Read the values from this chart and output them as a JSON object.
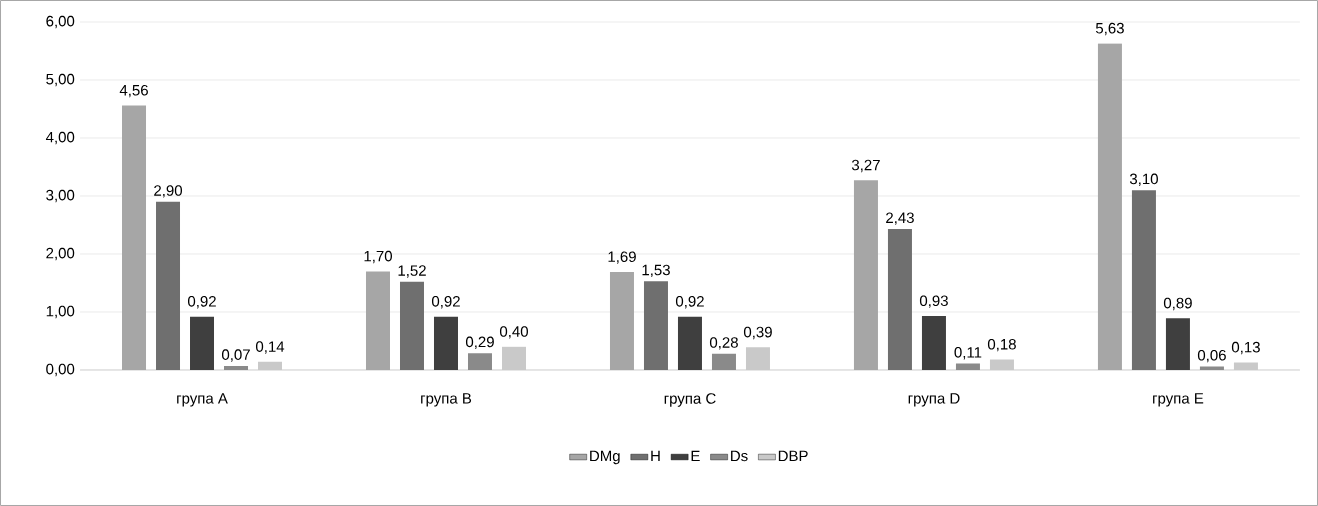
{
  "chart_data": {
    "type": "bar",
    "categories": [
      "група A",
      "група B",
      "група C",
      "група D",
      "група E"
    ],
    "series": [
      {
        "name": "DMg",
        "color": "#a6a6a6",
        "values": [
          4.56,
          1.7,
          1.69,
          3.27,
          5.63
        ],
        "value_labels": [
          "4,56",
          "1,70",
          "1,69",
          "3,27",
          "5,63"
        ]
      },
      {
        "name": "H",
        "color": "#6f6f6f",
        "values": [
          2.9,
          1.52,
          1.53,
          2.43,
          3.1
        ],
        "value_labels": [
          "2,90",
          "1,52",
          "1,53",
          "2,43",
          "3,10"
        ]
      },
      {
        "name": "E",
        "color": "#3f3f3f",
        "values": [
          0.92,
          0.92,
          0.92,
          0.93,
          0.89
        ],
        "value_labels": [
          "0,92",
          "0,92",
          "0,92",
          "0,93",
          "0,89"
        ]
      },
      {
        "name": "Ds",
        "color": "#8a8a8a",
        "values": [
          0.07,
          0.29,
          0.28,
          0.11,
          0.06
        ],
        "value_labels": [
          "0,07",
          "0,29",
          "0,28",
          "0,11",
          "0,06"
        ]
      },
      {
        "name": "DBP",
        "color": "#c9c9c9",
        "values": [
          0.14,
          0.4,
          0.39,
          0.18,
          0.13
        ],
        "value_labels": [
          "0,14",
          "0,40",
          "0,39",
          "0,18",
          "0,13"
        ]
      }
    ],
    "ylim": [
      0,
      6
    ],
    "yticks": [
      {
        "value": 0,
        "label": "0,00"
      },
      {
        "value": 1,
        "label": "1,00"
      },
      {
        "value": 2,
        "label": "2,00"
      },
      {
        "value": 3,
        "label": "3,00"
      },
      {
        "value": 4,
        "label": "4,00"
      },
      {
        "value": 5,
        "label": "5,00"
      },
      {
        "value": 6,
        "label": "6,00"
      }
    ],
    "grid": "y",
    "legend": "bottom"
  }
}
